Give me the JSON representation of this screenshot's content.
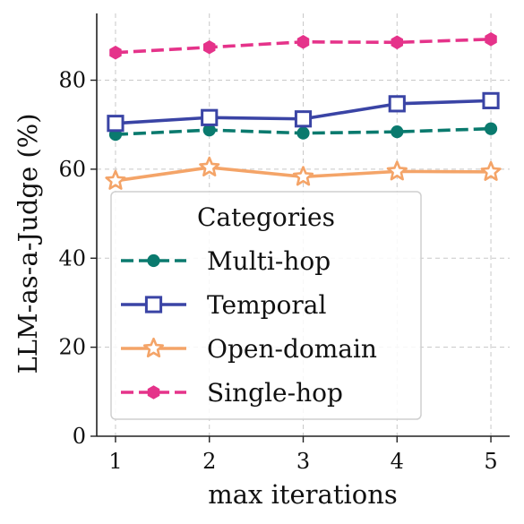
{
  "chart_data": {
    "type": "line",
    "x": [
      1,
      2,
      3,
      4,
      5
    ],
    "xlabel": "max iterations",
    "ylabel": "LLM-as-a-Judge (%)",
    "xlim": [
      0.8,
      5.2
    ],
    "ylim": [
      0,
      95
    ],
    "xticks": [
      "1",
      "2",
      "3",
      "4",
      "5"
    ],
    "yticks": [
      "0",
      "20",
      "40",
      "60",
      "80"
    ],
    "grid": true,
    "legend": {
      "title": "Categories",
      "placement": "lower-left"
    },
    "series": [
      {
        "name": "Multi-hop",
        "values": [
          67.8,
          68.8,
          68.1,
          68.4,
          69.1
        ],
        "color": "#0a7a6e",
        "marker": "circle",
        "line_style": "dashed"
      },
      {
        "name": "Temporal",
        "values": [
          70.3,
          71.6,
          71.3,
          74.7,
          75.4
        ],
        "color": "#3a44a5",
        "marker": "square-open",
        "line_style": "solid"
      },
      {
        "name": "Open-domain",
        "values": [
          57.4,
          60.4,
          58.3,
          59.5,
          59.4
        ],
        "color": "#f4a468",
        "marker": "star-open",
        "line_style": "solid"
      },
      {
        "name": "Single-hop",
        "values": [
          86.2,
          87.4,
          88.6,
          88.5,
          89.2
        ],
        "color": "#e5338a",
        "marker": "hexagon",
        "line_style": "dashed"
      }
    ]
  }
}
